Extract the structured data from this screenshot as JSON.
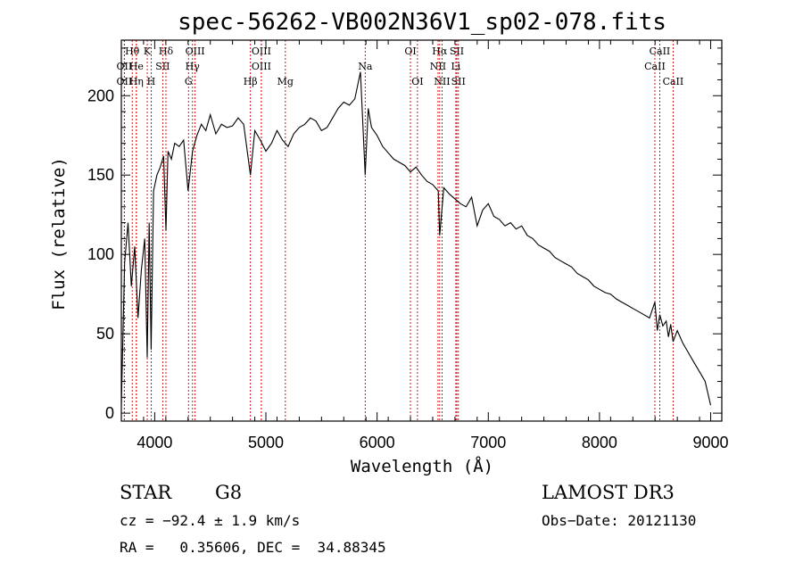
{
  "chart_data": {
    "type": "line",
    "title": "spec-56262-VB002N36V1_sp02-078.fits",
    "xlabel": "Wavelength (Å)",
    "ylabel": "Flux (relative)",
    "xlim": [
      3700,
      9100
    ],
    "ylim": [
      -5,
      235
    ],
    "x_ticks": [
      4000,
      5000,
      6000,
      7000,
      8000,
      9000
    ],
    "x_tick_labels": [
      "4000",
      "5000",
      "6000",
      "7000",
      "8000",
      "9000"
    ],
    "y_ticks": [
      0,
      50,
      100,
      150,
      200
    ],
    "y_tick_labels": [
      "0",
      "50",
      "100",
      "150",
      "200"
    ],
    "series": [
      {
        "x": [
          3700,
          3730,
          3760,
          3790,
          3820,
          3850,
          3880,
          3910,
          3933,
          3950,
          3968,
          3990,
          4020,
          4050,
          4080,
          4101,
          4120,
          4150,
          4180,
          4220,
          4260,
          4300,
          4340,
          4380,
          4420,
          4460,
          4500,
          4550,
          4600,
          4650,
          4700,
          4750,
          4800,
          4861,
          4900,
          4950,
          5000,
          5050,
          5100,
          5150,
          5200,
          5250,
          5300,
          5350,
          5400,
          5450,
          5500,
          5550,
          5600,
          5650,
          5700,
          5750,
          5800,
          5850,
          5893,
          5920,
          5950,
          6000,
          6050,
          6100,
          6150,
          6200,
          6250,
          6300,
          6350,
          6400,
          6450,
          6500,
          6550,
          6563,
          6600,
          6650,
          6700,
          6750,
          6800,
          6850,
          6900,
          6950,
          7000,
          7050,
          7100,
          7150,
          7200,
          7250,
          7300,
          7350,
          7400,
          7450,
          7500,
          7550,
          7600,
          7650,
          7700,
          7750,
          7800,
          7850,
          7900,
          7950,
          8000,
          8050,
          8100,
          8150,
          8200,
          8250,
          8300,
          8350,
          8400,
          8450,
          8498,
          8520,
          8542,
          8570,
          8600,
          8620,
          8640,
          8662,
          8700,
          8750,
          8800,
          8850,
          8900,
          8950,
          9000
        ],
        "y": [
          5,
          95,
          120,
          80,
          105,
          60,
          90,
          110,
          35,
          120,
          40,
          140,
          150,
          155,
          162,
          115,
          165,
          160,
          170,
          168,
          172,
          140,
          165,
          175,
          182,
          178,
          188,
          176,
          182,
          180,
          181,
          186,
          182,
          150,
          178,
          172,
          165,
          170,
          178,
          172,
          168,
          176,
          180,
          182,
          186,
          184,
          178,
          180,
          186,
          192,
          196,
          194,
          198,
          215,
          150,
          192,
          180,
          175,
          168,
          164,
          160,
          158,
          156,
          152,
          155,
          150,
          146,
          144,
          140,
          112,
          142,
          138,
          135,
          132,
          130,
          136,
          118,
          128,
          132,
          124,
          122,
          118,
          120,
          116,
          118,
          112,
          110,
          106,
          104,
          102,
          98,
          96,
          94,
          92,
          88,
          86,
          84,
          80,
          78,
          76,
          75,
          72,
          70,
          68,
          66,
          64,
          62,
          60,
          70,
          52,
          62,
          55,
          58,
          48,
          56,
          45,
          52,
          44,
          38,
          32,
          26,
          20,
          5
        ]
      }
    ],
    "spectral_lines": [
      {
        "label": "Hθ",
        "x": 3798,
        "row": 0
      },
      {
        "label": "OII",
        "x": 3727,
        "row": 1
      },
      {
        "label": "OII",
        "x": 3727,
        "row": 2
      },
      {
        "label": "He",
        "x": 3835,
        "row": 1
      },
      {
        "label": "Hη",
        "x": 3835,
        "row": 2
      },
      {
        "label": "K",
        "x": 3933,
        "row": 0
      },
      {
        "label": "H",
        "x": 3968,
        "row": 2
      },
      {
        "label": "SII",
        "x": 4072,
        "row": 1
      },
      {
        "label": "Hδ",
        "x": 4101,
        "row": 0
      },
      {
        "label": "OIII",
        "x": 4363,
        "row": 0
      },
      {
        "label": "Hγ",
        "x": 4340,
        "row": 1
      },
      {
        "label": "G",
        "x": 4304,
        "row": 2
      },
      {
        "label": "Hβ",
        "x": 4861,
        "row": 2
      },
      {
        "label": "OIII",
        "x": 4959,
        "row": 0
      },
      {
        "label": "OIII",
        "x": 4959,
        "row": 1
      },
      {
        "label": "Mg",
        "x": 5175,
        "row": 2
      },
      {
        "label": "Na",
        "x": 5893,
        "row": 1
      },
      {
        "label": "OI",
        "x": 6300,
        "row": 0
      },
      {
        "label": "OI",
        "x": 6363,
        "row": 2
      },
      {
        "label": "Hα",
        "x": 6563,
        "row": 0
      },
      {
        "label": "NII",
        "x": 6548,
        "row": 1
      },
      {
        "label": "NII",
        "x": 6584,
        "row": 2
      },
      {
        "label": "SII",
        "x": 6717,
        "row": 0
      },
      {
        "label": "Li",
        "x": 6708,
        "row": 1
      },
      {
        "label": "SII",
        "x": 6731,
        "row": 2
      },
      {
        "label": "CaII",
        "x": 8542,
        "row": 0
      },
      {
        "label": "CaII",
        "x": 8498,
        "row": 1
      },
      {
        "label": "CaII",
        "x": 8662,
        "row": 2
      }
    ],
    "line_color": "#000000",
    "marker_color": "#cc0000"
  },
  "info": {
    "class": "STAR",
    "subclass": "G8",
    "survey": "LAMOST DR3",
    "cz": "cz = −92.4 ± 1.9 km/s",
    "obs_date": "Obs−Date: 20121130",
    "radec": "RA =   0.35606, DEC =  34.88345"
  }
}
